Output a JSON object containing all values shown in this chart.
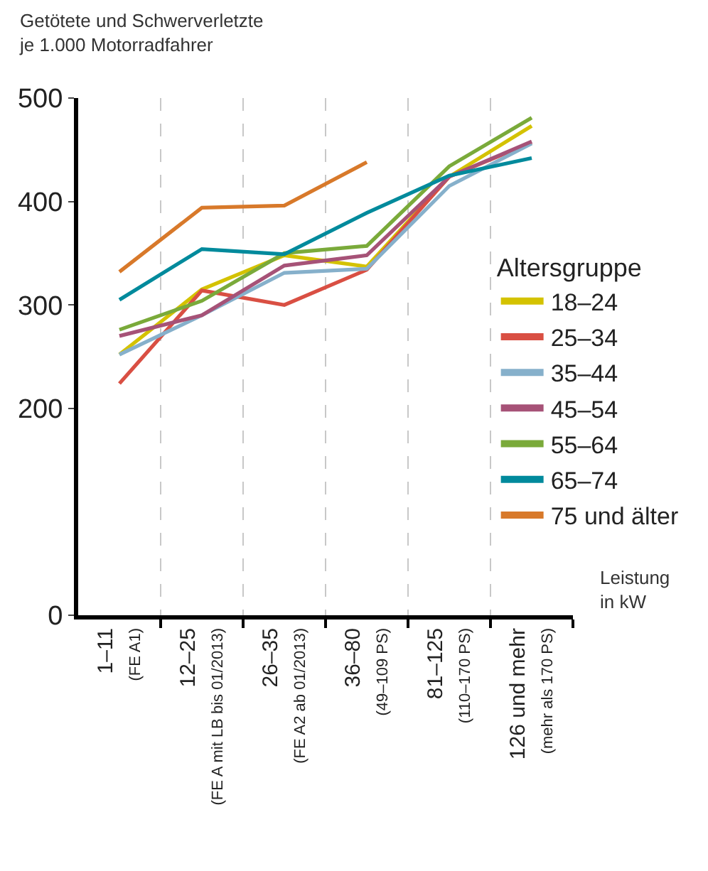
{
  "chart_data": {
    "type": "line",
    "ylabel": "Getötete und Schwerverletzte\nje 1.000 Motorradfahrer",
    "xlabel": "Leistung\nin kW",
    "legend_title": "Altersgruppe",
    "categories": [
      "1–11\n(FE A1)",
      "12–25\n(FE A mit LB bis 01/2013)",
      "26–35\n(FE A2 ab 01/2013)",
      "36–80\n(49–109 PS)",
      "81–125\n(110–170 PS)",
      "126 und mehr\n(mehr als 170 PS)"
    ],
    "series": [
      {
        "name": "18–24",
        "color": "#d4c200",
        "values": [
          252,
          315,
          348,
          337,
          424,
          473
        ]
      },
      {
        "name": "25–34",
        "color": "#d94f43",
        "values": [
          224,
          314,
          300,
          334,
          424,
          457
        ]
      },
      {
        "name": "35–44",
        "color": "#86b0cb",
        "values": [
          252,
          290,
          331,
          335,
          415,
          456
        ]
      },
      {
        "name": "45–54",
        "color": "#a65277",
        "values": [
          270,
          290,
          338,
          348,
          424,
          458
        ]
      },
      {
        "name": "55–64",
        "color": "#7aaa3a",
        "values": [
          276,
          304,
          350,
          357,
          434,
          481
        ]
      },
      {
        "name": "65–74",
        "color": "#008a9c",
        "values": [
          305,
          354,
          349,
          389,
          425,
          442
        ]
      },
      {
        "name": "75 und älter",
        "color": "#d8792a",
        "values": [
          332,
          394,
          396,
          438,
          null,
          null
        ]
      }
    ],
    "ylim": [
      0,
      500
    ],
    "yticks": [
      0,
      200,
      300,
      400,
      500
    ],
    "grid": "x",
    "legend": "right",
    "marker": "none",
    "line_style": "solid"
  }
}
